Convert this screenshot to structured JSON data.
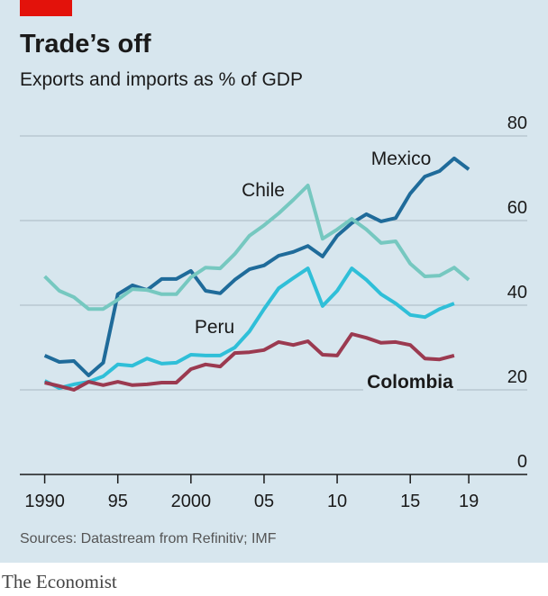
{
  "chart_data": {
    "type": "line",
    "title": "Trade’s off",
    "subtitle": "Exports and imports as % of GDP",
    "source": "Sources: Datastream from Refinitiv; IMF",
    "brand": "The Economist",
    "x": [
      1990,
      1991,
      1992,
      1993,
      1994,
      1995,
      1996,
      1997,
      1998,
      1999,
      2000,
      2001,
      2002,
      2003,
      2004,
      2005,
      2006,
      2007,
      2008,
      2009,
      2010,
      2011,
      2012,
      2013,
      2014,
      2015,
      2016,
      2017,
      2018,
      2019
    ],
    "series": [
      {
        "name": "Mexico",
        "color": "#1f6b9a",
        "values": [
          28.1,
          26.6,
          26.8,
          23.4,
          26.4,
          42.6,
          44.7,
          43.6,
          46.2,
          46.2,
          48.1,
          43.4,
          42.8,
          46,
          48.5,
          49.4,
          51.7,
          52.6,
          54,
          51.5,
          56.4,
          59.4,
          61.5,
          59.8,
          60.6,
          66.4,
          70.4,
          71.7,
          74.7,
          72.1
        ]
      },
      {
        "name": "Chile",
        "color": "#76c8c0",
        "values": [
          46.8,
          43.4,
          41.9,
          39.1,
          39.1,
          41.3,
          43.8,
          43.6,
          42.6,
          42.6,
          46.6,
          48.9,
          48.7,
          52.1,
          56.4,
          58.9,
          61.7,
          64.9,
          68.3,
          55.7,
          57.9,
          60.4,
          57.9,
          54.7,
          55.1,
          49.8,
          46.8,
          47,
          48.9,
          46
        ]
      },
      {
        "name": "Peru",
        "color": "#2fbfd8",
        "values": [
          22.1,
          20.4,
          21.3,
          21.9,
          23.2,
          26,
          25.7,
          27.4,
          26.2,
          26.4,
          28.3,
          28.1,
          28.1,
          30,
          33.8,
          39.1,
          44,
          46.4,
          48.7,
          39.8,
          43.4,
          48.7,
          46,
          42.6,
          40.4,
          37.7,
          37.2,
          39.1,
          40.4,
          null
        ]
      },
      {
        "name": "Colombia",
        "color": "#9b3a50",
        "values": [
          21.7,
          20.9,
          20,
          21.9,
          21.1,
          21.9,
          21.1,
          21.3,
          21.7,
          21.7,
          24.9,
          26,
          25.5,
          28.7,
          28.9,
          29.4,
          31.3,
          30.6,
          31.5,
          28.3,
          28.1,
          33.2,
          32.3,
          31.1,
          31.3,
          30.6,
          27.4,
          27.2,
          28.1,
          null
        ]
      }
    ],
    "xlim": [
      1988.3,
      2023
    ],
    "xticks": [
      1990,
      {
        "value": 1995,
        "label": "95"
      },
      2000,
      {
        "value": 2005,
        "label": "05"
      },
      {
        "value": 2010,
        "label": "10"
      },
      {
        "value": 2015,
        "label": "15"
      },
      {
        "value": 2019,
        "label": "19"
      }
    ],
    "ylim": [
      0,
      80
    ],
    "yticks": [
      0,
      20,
      40,
      60,
      80
    ],
    "grid": true
  }
}
